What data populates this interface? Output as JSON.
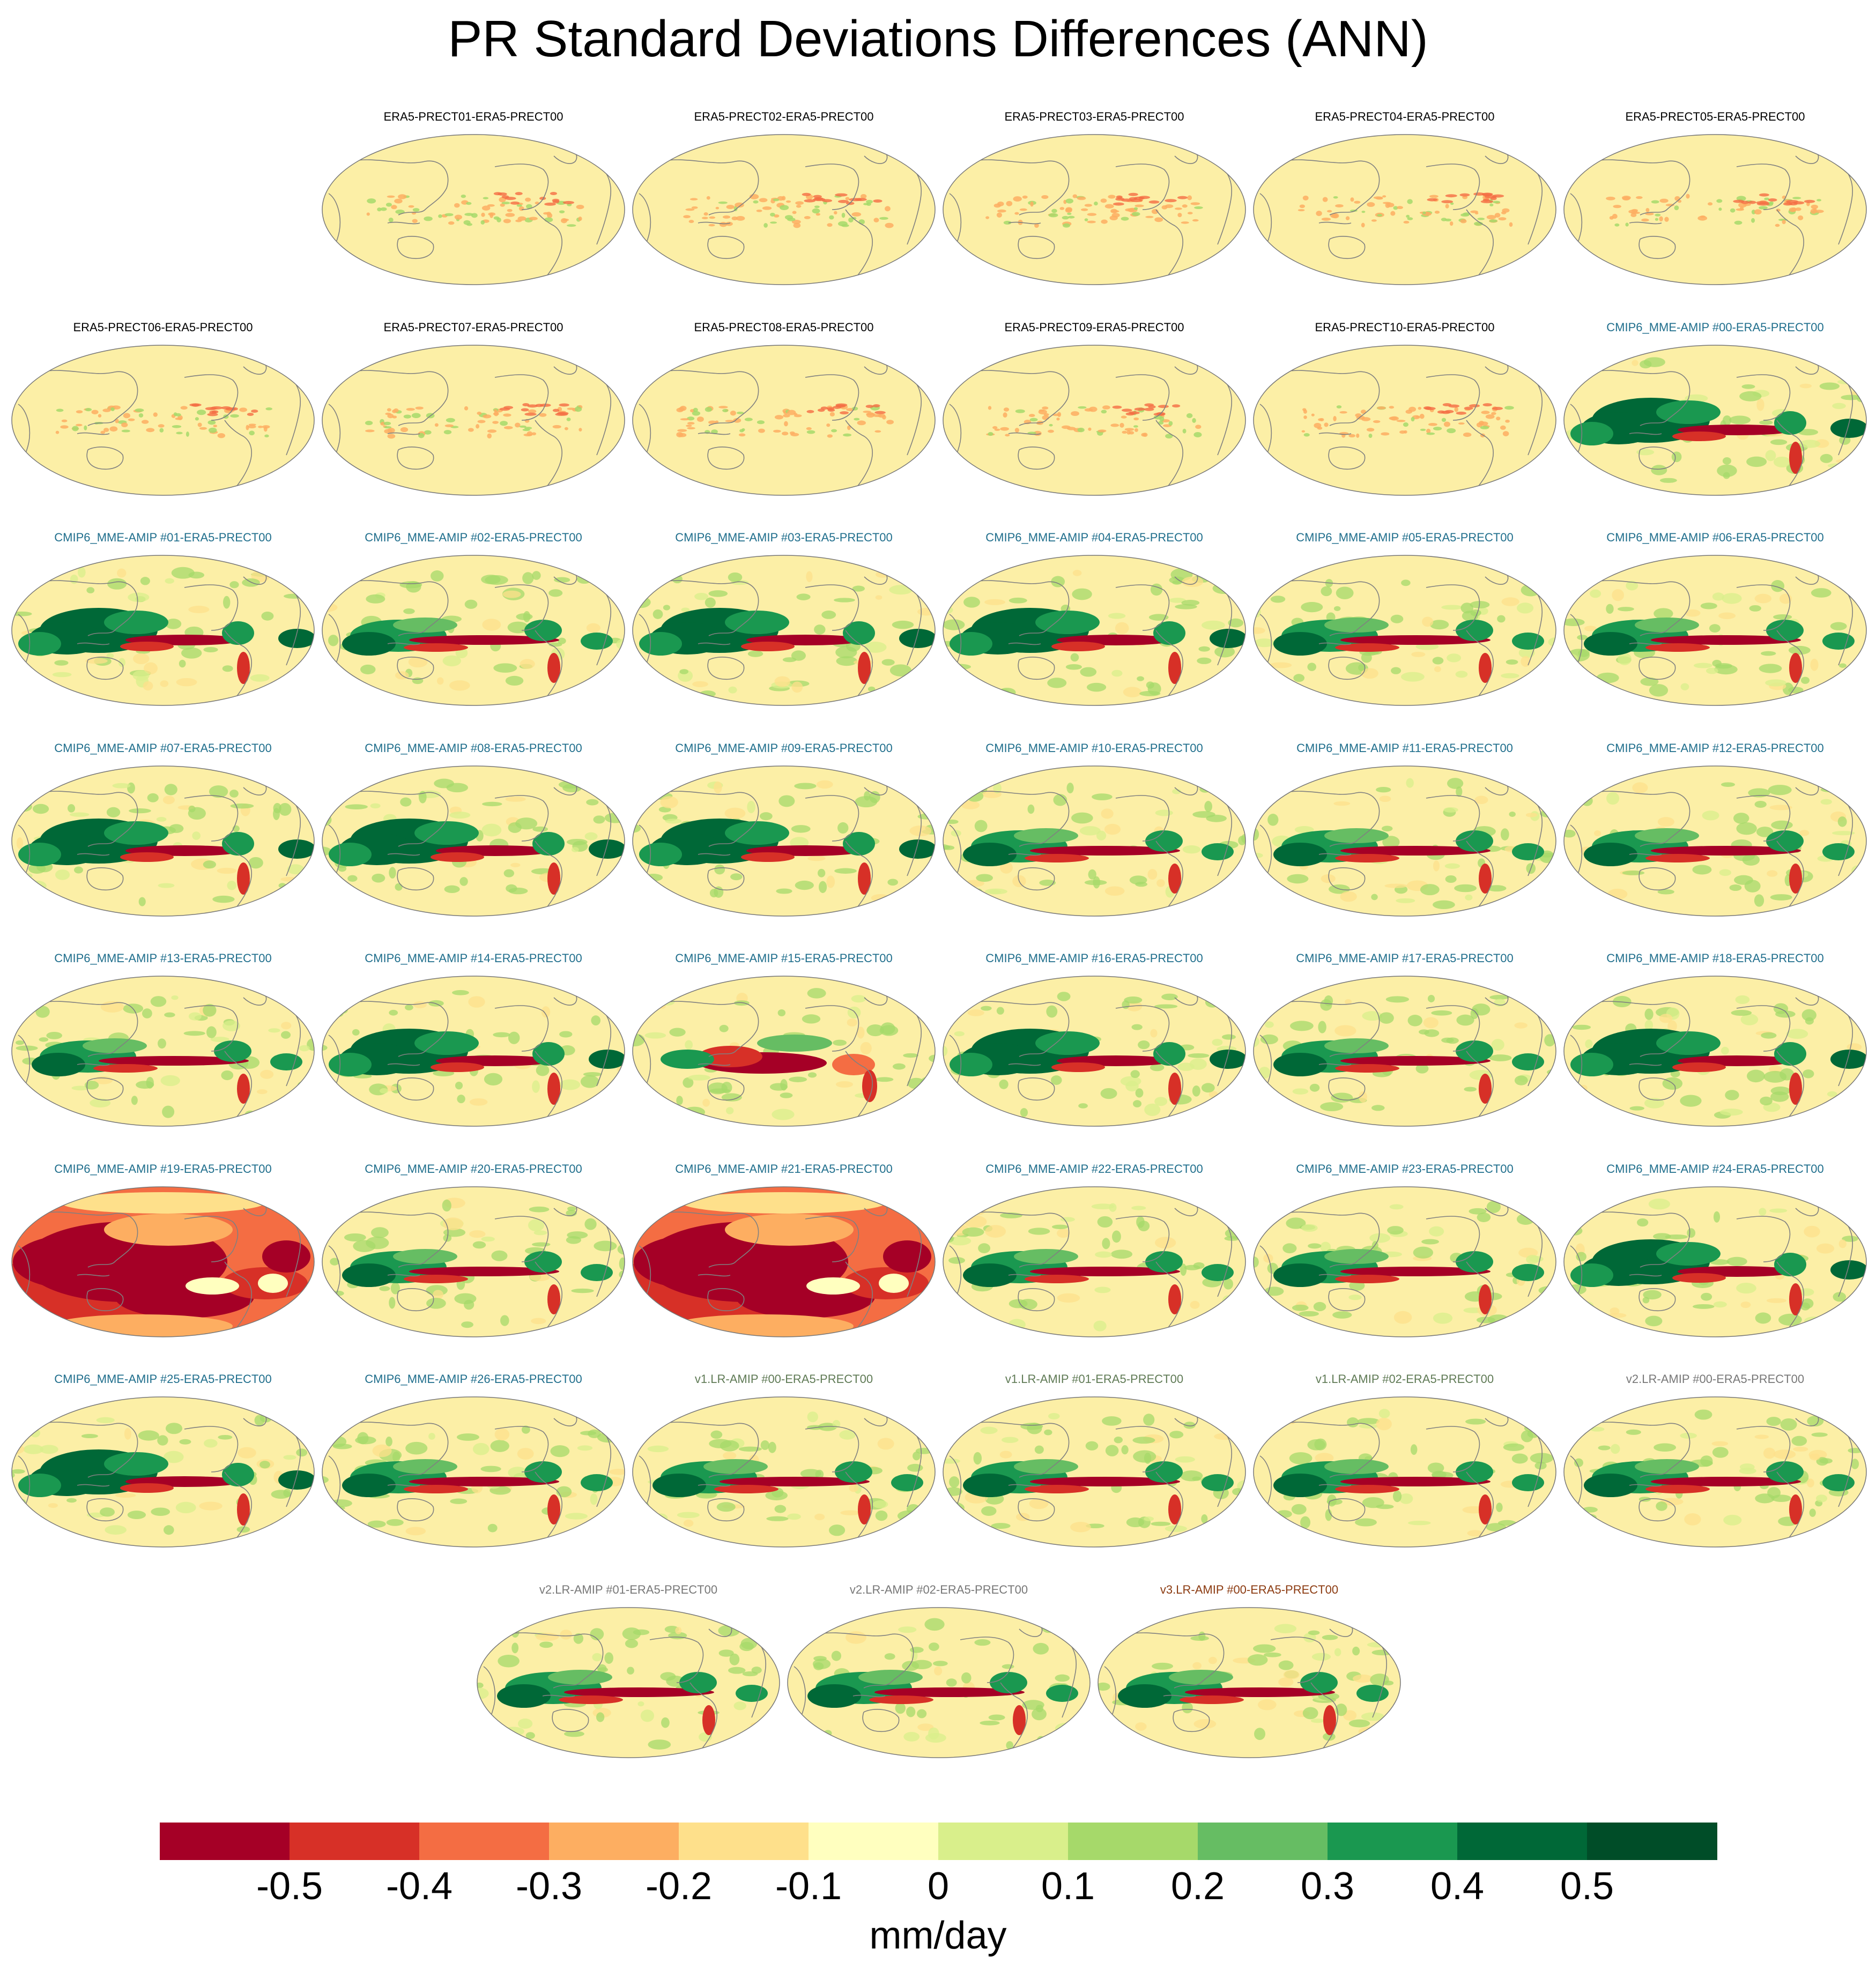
{
  "title": "PR Standard Deviations Differences (ANN)",
  "colors": {
    "name_era5": "#000000",
    "name_cmip6": "#1f6e8c",
    "name_v1": "#5f7a55",
    "name_v2": "#777777",
    "name_v3": "#8b3a10",
    "ocean_base": "#fcefa6",
    "coastline": "#808080"
  },
  "colorbar": {
    "colors": [
      "#a50026",
      "#d73027",
      "#f46d43",
      "#fdae61",
      "#fee08b",
      "#ffffbf",
      "#d9ef8b",
      "#a6d96a",
      "#66bd63",
      "#1a9850",
      "#006837",
      "#004d28"
    ],
    "ticks": [
      "-0.5",
      "-0.4",
      "-0.3",
      "-0.2",
      "-0.1",
      "0",
      "0.1",
      "0.2",
      "0.3",
      "0.4",
      "0.5"
    ],
    "units": "mm/day"
  },
  "chart_data": {
    "type": "heatmap",
    "projection": "Robinson global map, Pacific-centered",
    "title": "PR Standard Deviations Differences (ANN)",
    "units": "mm/day",
    "levels": [
      -0.5,
      -0.4,
      -0.3,
      -0.2,
      -0.1,
      0,
      0.1,
      0.2,
      0.3,
      0.4,
      0.5
    ],
    "panels": [
      {
        "name": "ERA5-PRECT01-ERA5-PRECT00",
        "group": "era5",
        "pattern": "weak"
      },
      {
        "name": "ERA5-PRECT02-ERA5-PRECT00",
        "group": "era5",
        "pattern": "weak"
      },
      {
        "name": "ERA5-PRECT03-ERA5-PRECT00",
        "group": "era5",
        "pattern": "weak"
      },
      {
        "name": "ERA5-PRECT04-ERA5-PRECT00",
        "group": "era5",
        "pattern": "weak"
      },
      {
        "name": "ERA5-PRECT05-ERA5-PRECT00",
        "group": "era5",
        "pattern": "weak"
      },
      {
        "name": "ERA5-PRECT06-ERA5-PRECT00",
        "group": "era5",
        "pattern": "weak"
      },
      {
        "name": "ERA5-PRECT07-ERA5-PRECT00",
        "group": "era5",
        "pattern": "weak"
      },
      {
        "name": "ERA5-PRECT08-ERA5-PRECT00",
        "group": "era5",
        "pattern": "weak"
      },
      {
        "name": "ERA5-PRECT09-ERA5-PRECT00",
        "group": "era5",
        "pattern": "weak"
      },
      {
        "name": "ERA5-PRECT10-ERA5-PRECT00",
        "group": "era5",
        "pattern": "weak"
      },
      {
        "name": "CMIP6_MME-AMIP  #00-ERA5-PRECT00",
        "group": "cmip6",
        "pattern": "green"
      },
      {
        "name": "CMIP6_MME-AMIP  #01-ERA5-PRECT00",
        "group": "cmip6",
        "pattern": "green"
      },
      {
        "name": "CMIP6_MME-AMIP  #02-ERA5-PRECT00",
        "group": "cmip6",
        "pattern": "mixed"
      },
      {
        "name": "CMIP6_MME-AMIP  #03-ERA5-PRECT00",
        "group": "cmip6",
        "pattern": "green"
      },
      {
        "name": "CMIP6_MME-AMIP  #04-ERA5-PRECT00",
        "group": "cmip6",
        "pattern": "green"
      },
      {
        "name": "CMIP6_MME-AMIP  #05-ERA5-PRECT00",
        "group": "cmip6",
        "pattern": "mixed"
      },
      {
        "name": "CMIP6_MME-AMIP  #06-ERA5-PRECT00",
        "group": "cmip6",
        "pattern": "mixed"
      },
      {
        "name": "CMIP6_MME-AMIP  #07-ERA5-PRECT00",
        "group": "cmip6",
        "pattern": "green"
      },
      {
        "name": "CMIP6_MME-AMIP  #08-ERA5-PRECT00",
        "group": "cmip6",
        "pattern": "green"
      },
      {
        "name": "CMIP6_MME-AMIP  #09-ERA5-PRECT00",
        "group": "cmip6",
        "pattern": "green"
      },
      {
        "name": "CMIP6_MME-AMIP  #10-ERA5-PRECT00",
        "group": "cmip6",
        "pattern": "mixed"
      },
      {
        "name": "CMIP6_MME-AMIP  #11-ERA5-PRECT00",
        "group": "cmip6",
        "pattern": "mixed"
      },
      {
        "name": "CMIP6_MME-AMIP  #12-ERA5-PRECT00",
        "group": "cmip6",
        "pattern": "mixed"
      },
      {
        "name": "CMIP6_MME-AMIP  #13-ERA5-PRECT00",
        "group": "cmip6",
        "pattern": "mixed"
      },
      {
        "name": "CMIP6_MME-AMIP  #14-ERA5-PRECT00",
        "group": "cmip6",
        "pattern": "green"
      },
      {
        "name": "CMIP6_MME-AMIP  #15-ERA5-PRECT00",
        "group": "cmip6",
        "pattern": "red"
      },
      {
        "name": "CMIP6_MME-AMIP  #16-ERA5-PRECT00",
        "group": "cmip6",
        "pattern": "green"
      },
      {
        "name": "CMIP6_MME-AMIP  #17-ERA5-PRECT00",
        "group": "cmip6",
        "pattern": "mixed"
      },
      {
        "name": "CMIP6_MME-AMIP  #18-ERA5-PRECT00",
        "group": "cmip6",
        "pattern": "green"
      },
      {
        "name": "CMIP6_MME-AMIP  #19-ERA5-PRECT00",
        "group": "cmip6",
        "pattern": "allred"
      },
      {
        "name": "CMIP6_MME-AMIP  #20-ERA5-PRECT00",
        "group": "cmip6",
        "pattern": "mixed"
      },
      {
        "name": "CMIP6_MME-AMIP  #21-ERA5-PRECT00",
        "group": "cmip6",
        "pattern": "allred"
      },
      {
        "name": "CMIP6_MME-AMIP  #22-ERA5-PRECT00",
        "group": "cmip6",
        "pattern": "mixed"
      },
      {
        "name": "CMIP6_MME-AMIP  #23-ERA5-PRECT00",
        "group": "cmip6",
        "pattern": "mixed"
      },
      {
        "name": "CMIP6_MME-AMIP  #24-ERA5-PRECT00",
        "group": "cmip6",
        "pattern": "green"
      },
      {
        "name": "CMIP6_MME-AMIP  #25-ERA5-PRECT00",
        "group": "cmip6",
        "pattern": "green"
      },
      {
        "name": "CMIP6_MME-AMIP  #26-ERA5-PRECT00",
        "group": "cmip6",
        "pattern": "mixed"
      },
      {
        "name": "v1.LR-AMIP  #00-ERA5-PRECT00",
        "group": "v1",
        "pattern": "mixed"
      },
      {
        "name": "v1.LR-AMIP  #01-ERA5-PRECT00",
        "group": "v1",
        "pattern": "mixed"
      },
      {
        "name": "v1.LR-AMIP  #02-ERA5-PRECT00",
        "group": "v1",
        "pattern": "mixed"
      },
      {
        "name": "v2.LR-AMIP  #00-ERA5-PRECT00",
        "group": "v2",
        "pattern": "mixed"
      },
      {
        "name": "v2.LR-AMIP  #01-ERA5-PRECT00",
        "group": "v2",
        "pattern": "mixed"
      },
      {
        "name": "v2.LR-AMIP  #02-ERA5-PRECT00",
        "group": "v2",
        "pattern": "mixed"
      },
      {
        "name": "v3.LR-AMIP  #00-ERA5-PRECT00",
        "group": "v3",
        "pattern": "mixed"
      }
    ]
  }
}
